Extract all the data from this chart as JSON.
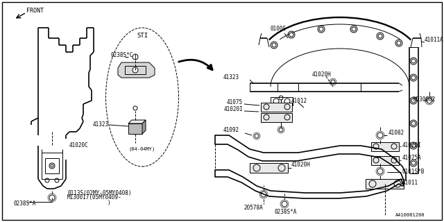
{
  "bg_color": "#ffffff",
  "line_color": "#000000",
  "part_number_bottom_right": "A410001200",
  "labels": {
    "front_arrow": "FRONT",
    "sti_label": "STI",
    "sti_sub": "(04-04MY)",
    "p_0100s": "0100S",
    "p_41011A": "41011A",
    "p_41323_main": "41323",
    "p_41020H_top": "41020H",
    "p_41075": "41075",
    "p_41020I": "41020I",
    "p_41012": "41012",
    "p_41092": "41092",
    "p_41082_side": "41082",
    "p_41020I_side": "41020I",
    "p_41020H_low": "41020H",
    "p_41075A": "41075A",
    "p_0101sB": "0101S*B",
    "p_41011": "41011",
    "p_0238sA_bot": "0238S*A",
    "p_20578A": "20578A",
    "p_41020C": "41020C",
    "p_0238sA_left": "0238S*A",
    "p_0113s": "0113S(02MY-05MY0408)",
    "p_M130017": "M130017(05MY0409-",
    "p_paren": ")",
    "p_41323_sti": "41323",
    "p_0238sC": "0238S*C",
    "p_M030002": "M030002"
  },
  "font_size": 5.5,
  "lw": 0.7,
  "tlw": 1.2
}
